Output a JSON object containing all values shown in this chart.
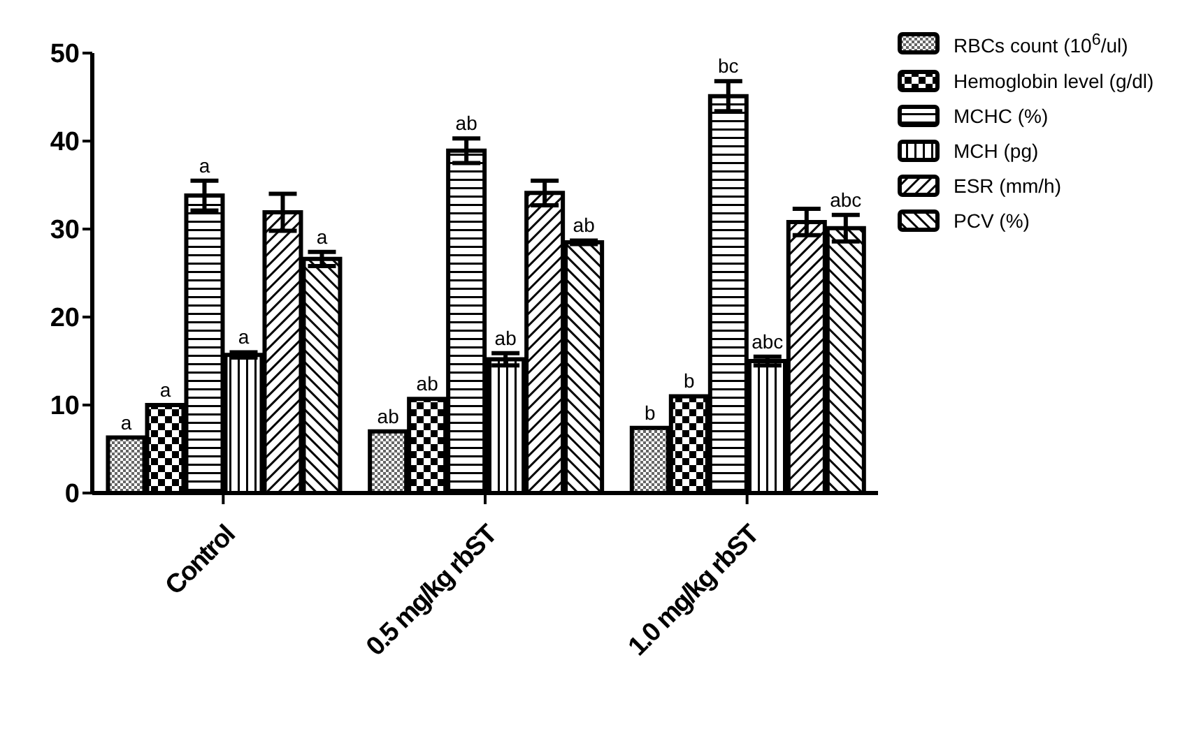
{
  "chart_data": {
    "type": "bar",
    "categories": [
      "Control",
      "0.5 mg/kg rbST",
      "1.0 mg/kg rbST"
    ],
    "series": [
      {
        "name": "RBCs count (10$^{6}$/ul)",
        "color": "#000000",
        "values": [
          6.3,
          7.0,
          7.4
        ],
        "value_labels": [
          "a",
          "ab",
          "b"
        ]
      },
      {
        "name": "Hemoglobin level (g/dl)",
        "color": "#000000",
        "values": [
          10.0,
          10.7,
          11.0
        ],
        "value_labels": [
          "a",
          "ab",
          "b"
        ]
      },
      {
        "name": "MCHC (%)",
        "color": "#000000",
        "values": [
          33.8,
          38.9,
          45.1
        ],
        "errors": [
          1.7,
          1.4,
          1.7
        ],
        "value_labels": [
          "a",
          "ab",
          "bc"
        ]
      },
      {
        "name": "MCH (pg)",
        "color": "#000000",
        "values": [
          15.7,
          15.2,
          15.0
        ],
        "errors": [
          0.3,
          0.7,
          0.5
        ],
        "value_labels": [
          "a",
          "ab",
          "abc"
        ]
      },
      {
        "name": "ESR (mm/h)",
        "color": "#000000",
        "values": [
          31.9,
          34.1,
          30.8
        ],
        "errors": [
          2.1,
          1.4,
          1.5
        ]
      },
      {
        "name": "PCV (%)",
        "color": "#000000",
        "values": [
          26.6,
          28.5,
          30.1
        ],
        "errors": [
          0.8,
          0.2,
          1.5
        ],
        "value_labels": [
          "a",
          "ab",
          "abc"
        ]
      }
    ],
    "ylim": [
      0,
      50
    ],
    "yticks": [
      0,
      10,
      20,
      30,
      40,
      50
    ],
    "grid": false,
    "legend": "right"
  }
}
